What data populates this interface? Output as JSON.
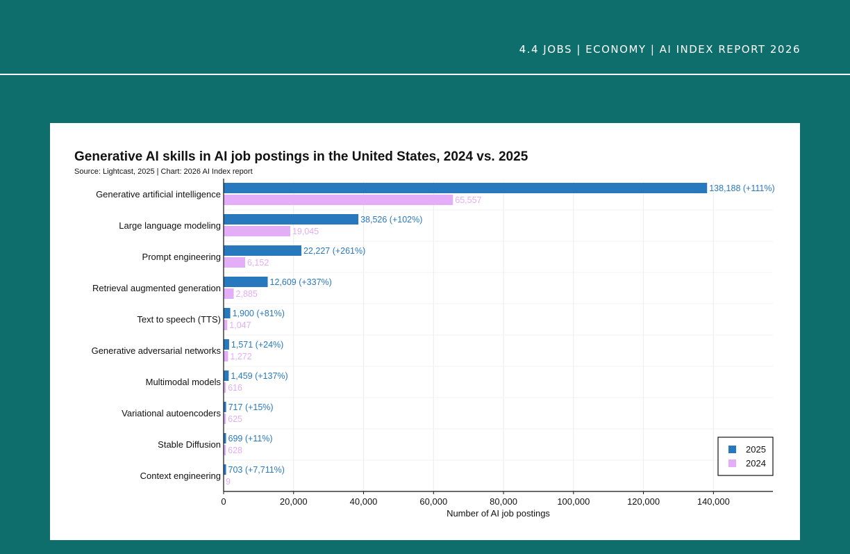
{
  "header": {
    "breadcrumb": "4.4 JOBS  |  ECONOMY  |  AI INDEX REPORT 2026"
  },
  "chart_data": {
    "type": "bar",
    "orientation": "horizontal",
    "title": "Generative AI skills in AI job postings in the United States, 2024 vs. 2025",
    "source": "Source: Lightcast, 2025 | Chart: 2026 AI Index report",
    "xlabel": "Number of AI job postings",
    "xlim": [
      0,
      157000
    ],
    "xticks": [
      0,
      20000,
      40000,
      60000,
      80000,
      100000,
      120000,
      140000
    ],
    "xtick_labels": [
      "0",
      "20,000",
      "40,000",
      "60,000",
      "80,000",
      "100,000",
      "120,000",
      "140,000"
    ],
    "grid": true,
    "legend_position": "bottom-right",
    "categories": [
      "Generative artificial intelligence",
      "Large language modeling",
      "Prompt engineering",
      "Retrieval augmented generation",
      "Text to speech (TTS)",
      "Generative adversarial networks",
      "Multimodal models",
      "Variational autoencoders",
      "Stable Diffusion",
      "Context engineering"
    ],
    "series": [
      {
        "name": "2025",
        "color": "#2878be",
        "values": [
          138188,
          38526,
          22227,
          12609,
          1900,
          1571,
          1459,
          717,
          699,
          703
        ],
        "labels": [
          "138,188 (+111%)",
          "38,526 (+102%)",
          "22,227 (+261%)",
          "12,609 (+337%)",
          "1,900 (+81%)",
          "1,571 (+24%)",
          "1,459 (+137%)",
          "717 (+15%)",
          "699 (+11%)",
          "703 (+7,711%)"
        ]
      },
      {
        "name": "2024",
        "color": "#e4adf8",
        "values": [
          65557,
          19045,
          6152,
          2885,
          1047,
          1272,
          616,
          625,
          628,
          9
        ],
        "labels": [
          "65,557",
          "19,045",
          "6,152",
          "2,885",
          "1,047",
          "1,272",
          "616",
          "625",
          "628",
          "9"
        ]
      }
    ]
  }
}
